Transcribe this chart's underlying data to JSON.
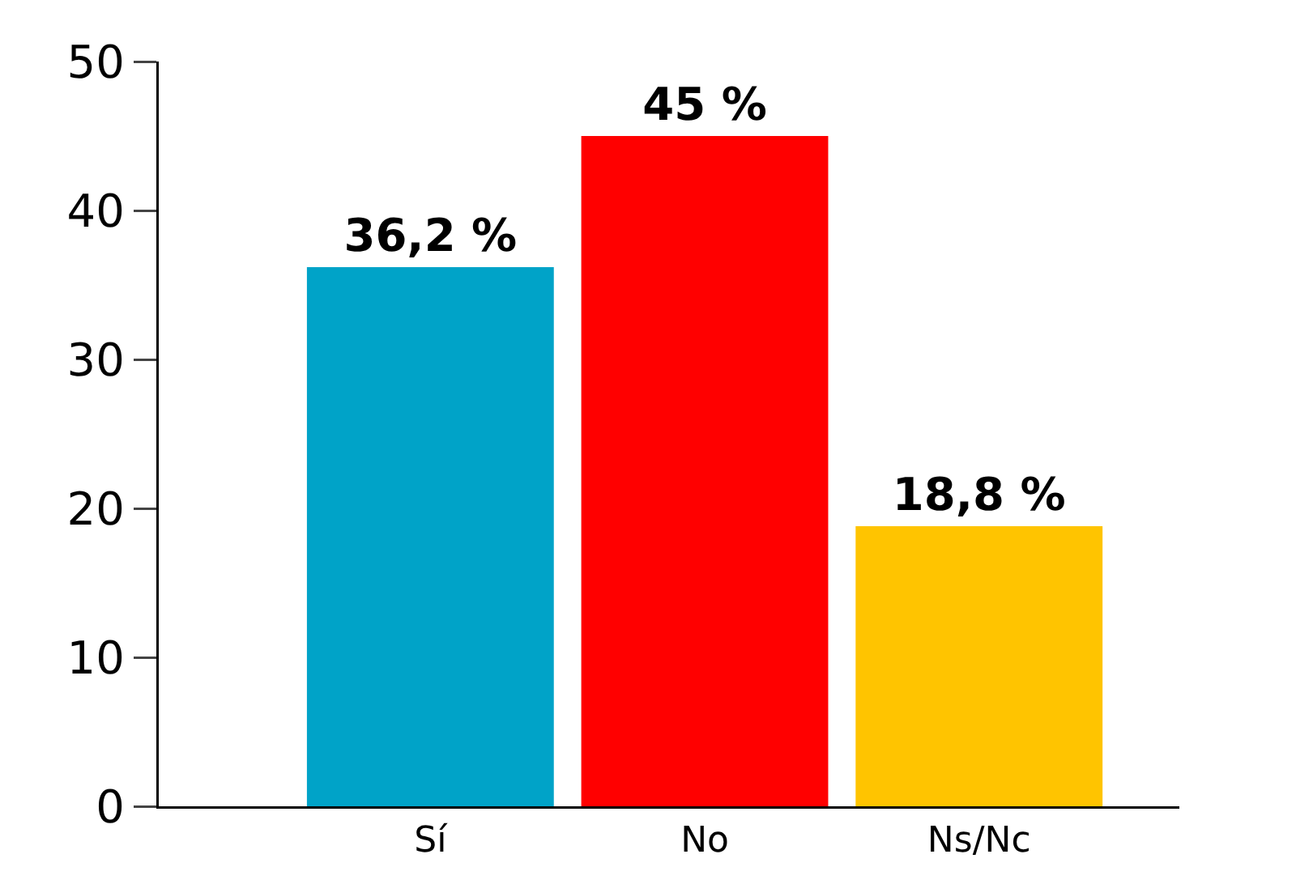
{
  "chart_data": {
    "type": "bar",
    "categories": [
      "Sí",
      "No",
      "Ns/Nc"
    ],
    "values": [
      36.2,
      45,
      18.8
    ],
    "colors": [
      "#00a3c8",
      "#ff0000",
      "#ffc400"
    ],
    "value_labels": [
      "36,2 %",
      "45 %",
      "18,8 %"
    ],
    "ylim": [
      0,
      50
    ],
    "yticks": [
      0,
      10,
      20,
      30,
      40,
      50
    ],
    "grid": false,
    "legend": false
  }
}
